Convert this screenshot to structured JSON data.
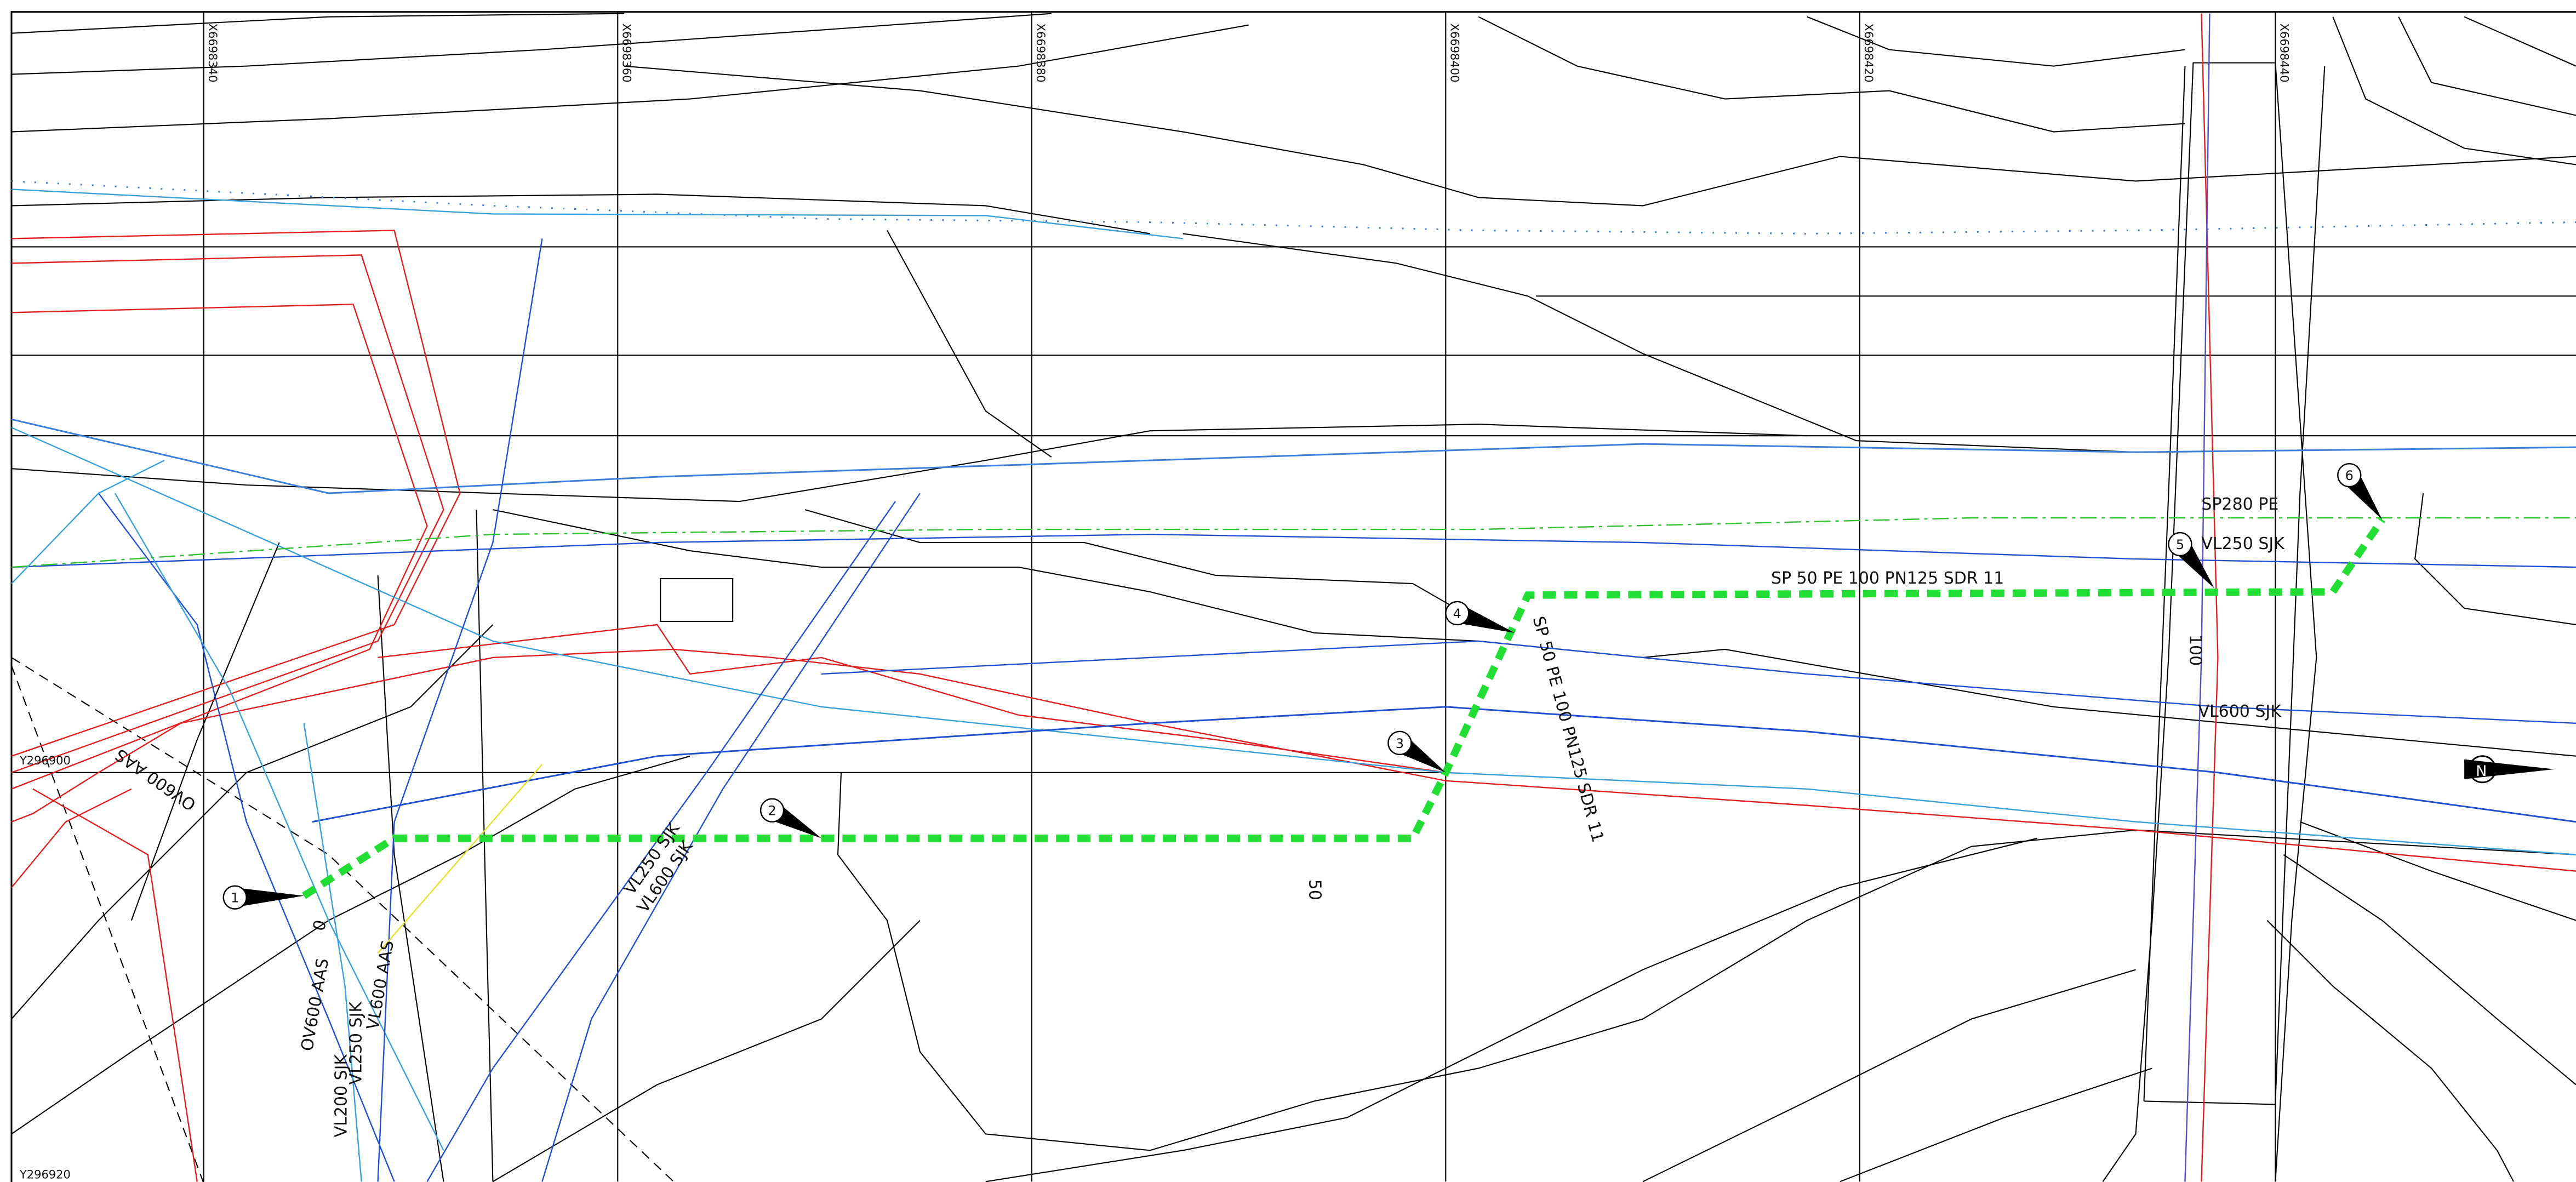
{
  "grid": {
    "x_labels": [
      "X6698340",
      "X6698360",
      "X6698380",
      "X6698400",
      "X6698420",
      "X6698440"
    ],
    "y_labels": [
      "Y296900",
      "Y296920"
    ]
  },
  "markers": [
    "1",
    "2",
    "3",
    "4",
    "5",
    "6"
  ],
  "pipe_labels": {
    "sp280": "SP280 PE",
    "vl250_top": "VL250 SJK",
    "route_h": "SP 50 PE 100 PN125 SDR 11",
    "route_v": "SP 50 PE 100 PN125 SDR 11",
    "vl600_right": "VL600 SJK",
    "vl250_diag": "VL250 SJK",
    "vl600_diag": "VL600 SJK",
    "ov600_diag": "OV600 AAS",
    "ov600_vert": "OV600 AAS",
    "vl600_aas": "VL600 AAS",
    "vl200": "VL200 SJK",
    "vl250_left": "VL250 SJK"
  },
  "stations": [
    "0",
    "50",
    "100"
  ],
  "north": "N"
}
